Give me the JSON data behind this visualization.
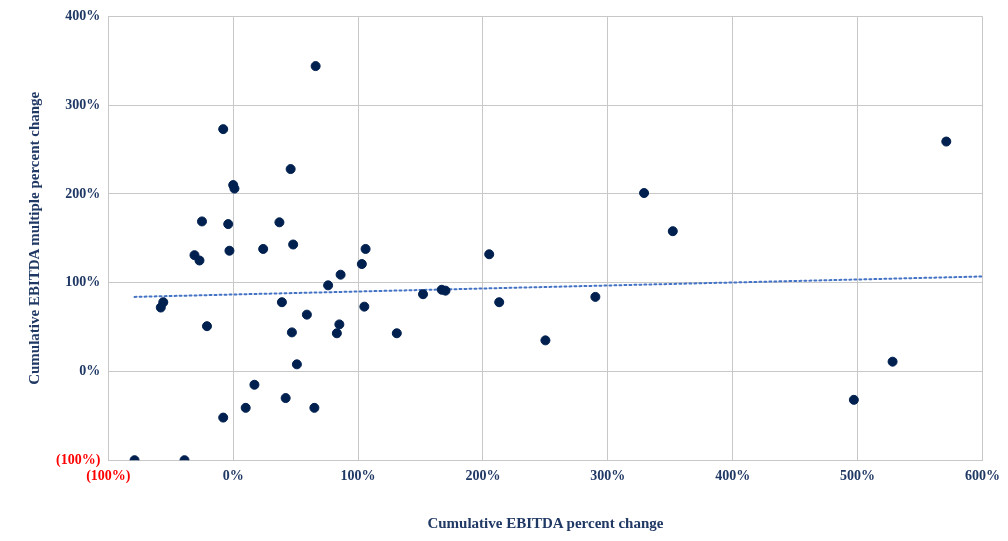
{
  "chart_data": {
    "type": "scatter",
    "xlabel": "Cumulative EBITDA percent change",
    "ylabel": "Cumulative EBITDA multiple percent change",
    "xlim": [
      -100,
      600
    ],
    "ylim": [
      -100,
      400
    ],
    "xticks": [
      {
        "value": -100,
        "label": "(100%)"
      },
      {
        "value": 0,
        "label": "0%"
      },
      {
        "value": 100,
        "label": "100%"
      },
      {
        "value": 200,
        "label": "200%"
      },
      {
        "value": 300,
        "label": "300%"
      },
      {
        "value": 400,
        "label": "400%"
      },
      {
        "value": 500,
        "label": "500%"
      },
      {
        "value": 600,
        "label": "600%"
      }
    ],
    "yticks": [
      {
        "value": -100,
        "label": "(100%)"
      },
      {
        "value": 0,
        "label": "0%"
      },
      {
        "value": 100,
        "label": "100%"
      },
      {
        "value": 200,
        "label": "200%"
      },
      {
        "value": 300,
        "label": "300%"
      },
      {
        "value": 400,
        "label": "400%"
      }
    ],
    "grid": true,
    "legend": false,
    "marker": "circle",
    "series": [
      {
        "color": "#002050",
        "x": [
          -79,
          -39,
          -8,
          10,
          17,
          42,
          65,
          51,
          -8,
          66,
          46,
          0,
          1,
          -25,
          -4,
          37,
          -31,
          -27,
          -3,
          24,
          48,
          -56,
          -58,
          -21,
          39,
          47,
          59,
          76,
          86,
          103,
          106,
          85,
          83,
          105,
          131,
          152,
          167,
          170,
          205,
          213,
          250,
          290,
          329,
          352,
          497,
          528,
          571
        ],
        "values": [
          -100,
          -100,
          -52,
          -41,
          -15,
          -30,
          -41,
          8,
          273,
          344,
          228,
          210,
          206,
          169,
          166,
          168,
          131,
          125,
          136,
          138,
          143,
          78,
          72,
          51,
          78,
          44,
          64,
          97,
          109,
          121,
          138,
          53,
          43,
          73,
          43,
          87,
          92,
          91,
          132,
          78,
          35,
          84,
          201,
          158,
          -32,
          11,
          259
        ]
      },
      {
        "type": "line",
        "color": "#4472c4",
        "line_style": "dotted",
        "marker": "none",
        "x": [
          -79,
          600
        ],
        "values": [
          84,
          107
        ]
      }
    ]
  }
}
